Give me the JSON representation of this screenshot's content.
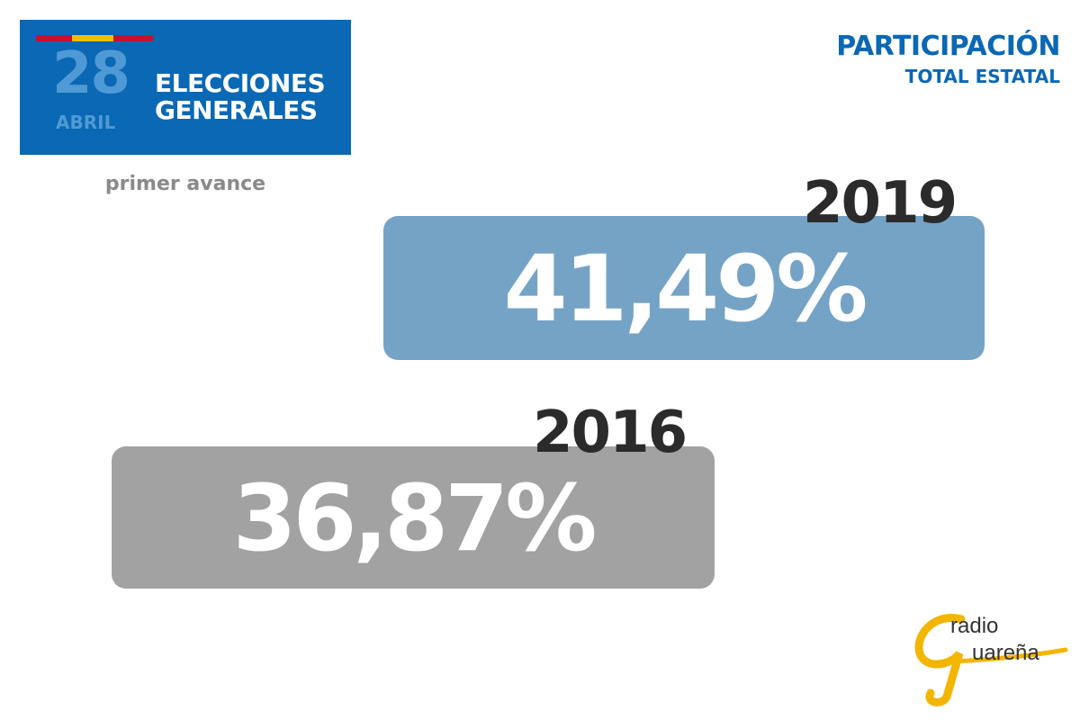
{
  "badge": {
    "day": "28",
    "month": "ABRIL",
    "title_line1": "ELECCIONES",
    "title_line2": "GENERALES",
    "flag_colors": [
      "#c8102e",
      "#f1bf00",
      "#c8102e"
    ],
    "background": "#0a68b4"
  },
  "subtitle": "primer avance",
  "heading": {
    "title": "PARTICIPACIÓN",
    "subtitle": "TOTAL ESTATAL"
  },
  "results": [
    {
      "year": "2019",
      "value": "41,49%",
      "color": "#74a3c6"
    },
    {
      "year": "2016",
      "value": "36,87%",
      "color": "#a2a2a2"
    }
  ],
  "logo": {
    "line1": "radio",
    "line2": "uareña",
    "accent": "#f2b600"
  }
}
